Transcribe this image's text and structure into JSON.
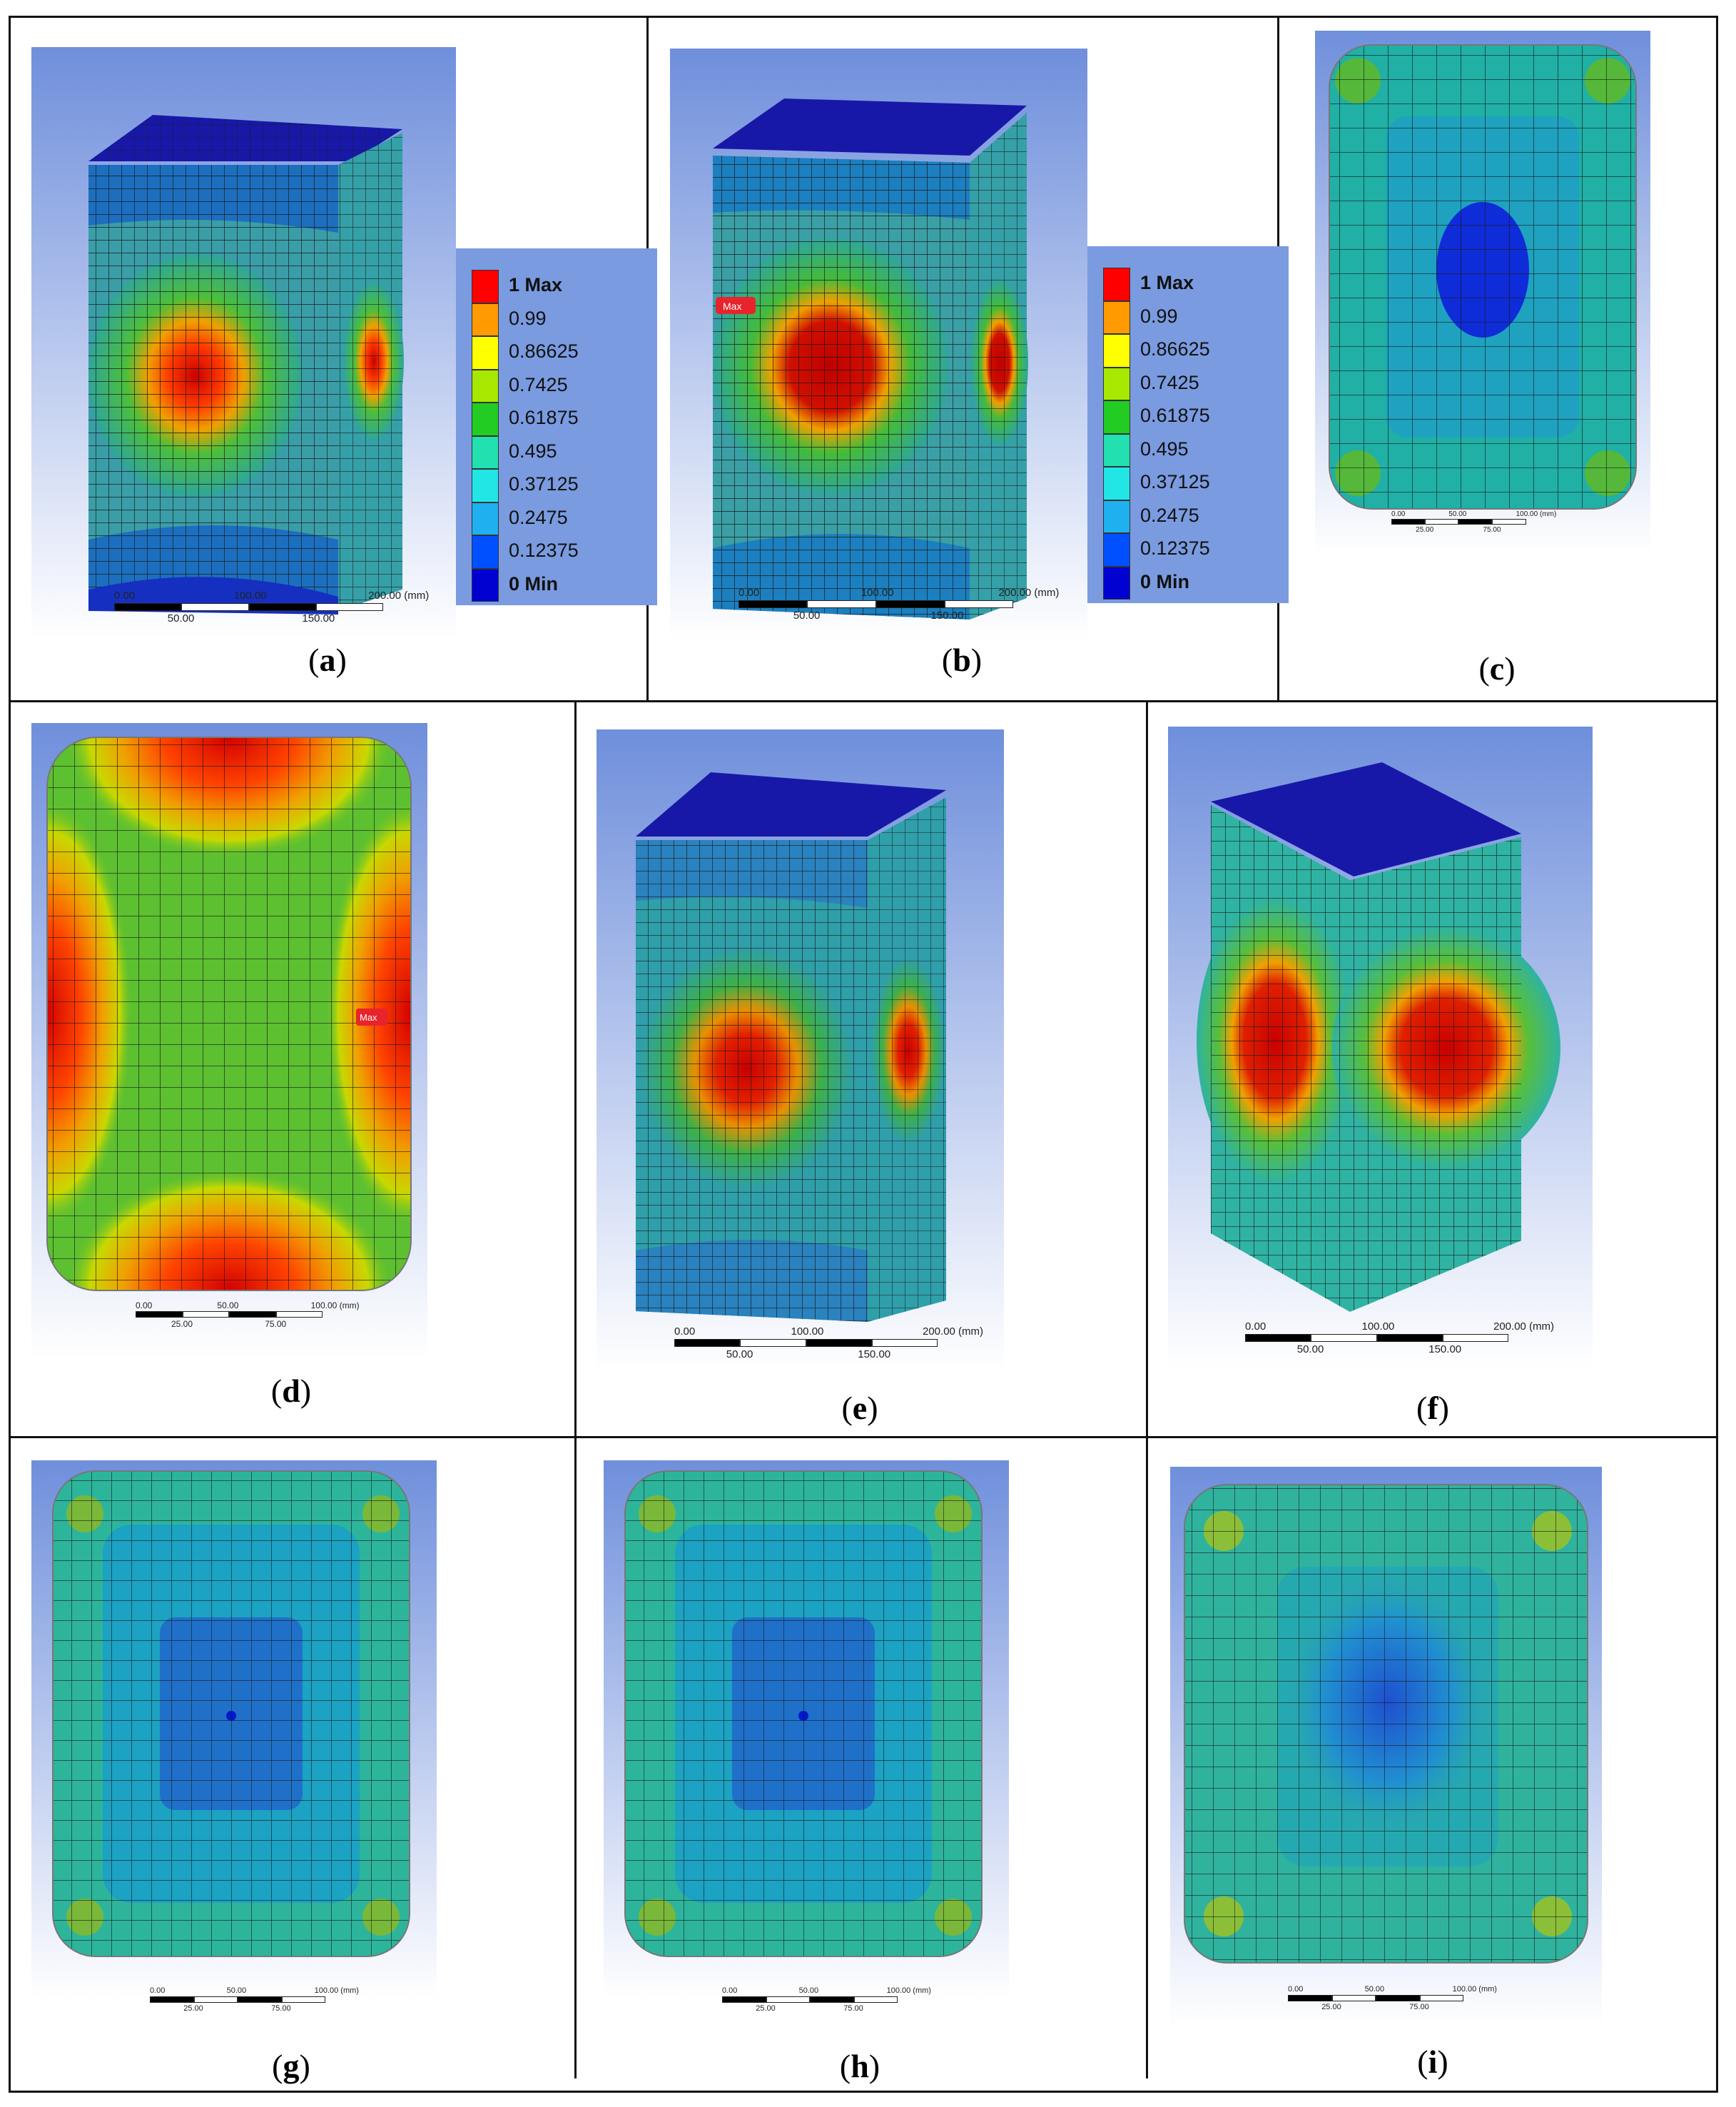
{
  "panels": [
    {
      "id": "a",
      "caption": "a"
    },
    {
      "id": "b",
      "caption": "b"
    },
    {
      "id": "c",
      "caption": "c"
    },
    {
      "id": "d",
      "caption": "d"
    },
    {
      "id": "e",
      "caption": "e"
    },
    {
      "id": "f",
      "caption": "f"
    },
    {
      "id": "g",
      "caption": "g"
    },
    {
      "id": "h",
      "caption": "h"
    },
    {
      "id": "i",
      "caption": "i"
    }
  ],
  "legend": {
    "labels": [
      "1 Max",
      "0.99",
      "0.86625",
      "0.7425",
      "0.61875",
      "0.495",
      "0.37125",
      "0.2475",
      "0.12375",
      "0 Min"
    ],
    "colors": [
      "#ff0000",
      "#ff9a00",
      "#ffff00",
      "#a6e800",
      "#22cc22",
      "#22e0b0",
      "#22e6e6",
      "#1fb0ef",
      "#0050ff",
      "#0000d0"
    ]
  },
  "scale_3d": {
    "top": [
      "0.00",
      "100.00",
      "200.00 (mm)"
    ],
    "bottom": [
      "50.00",
      "150.00"
    ]
  },
  "scale_2d": {
    "top": [
      "0.00",
      "50.00",
      "100.00 (mm)"
    ],
    "bottom": [
      "25.00",
      "75.00"
    ]
  },
  "max_marker": "Max"
}
